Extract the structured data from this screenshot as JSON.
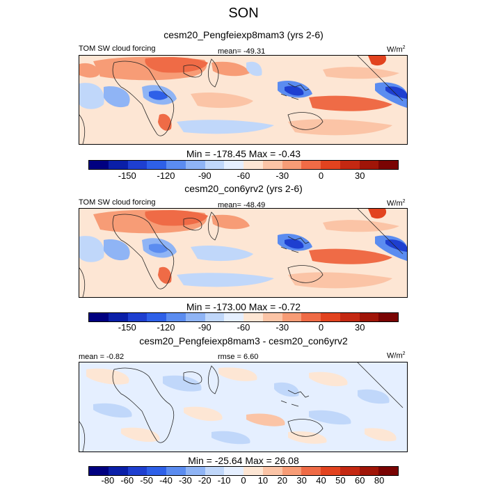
{
  "main_title": "SON",
  "units": "W/m",
  "units_sup": "2",
  "panels": [
    {
      "title": "cesm20_Pengfeiexp8mam3 (yrs 2-6)",
      "variable": "TOM SW cloud forcing",
      "stat": "mean= -49.31",
      "minmax": "Min = -178.45 Max =  -0.43"
    },
    {
      "title": "cesm20_con6yrv2 (yrs 2-6)",
      "variable": "TOM SW cloud forcing",
      "stat": "mean= -48.49",
      "minmax": "Min = -173.00 Max =  -0.72"
    },
    {
      "title": "cesm20_Pengfeiexp8mam3 - cesm20_con6yrv2",
      "stat_left": "mean =  -0.82",
      "stat_center": "rmse =   6.60",
      "minmax": "Min = -25.64 Max = 26.08"
    }
  ],
  "colorbar_abs": {
    "colors": [
      "#000080",
      "#0a1fa8",
      "#1e3fd0",
      "#2e60e8",
      "#5b8cf0",
      "#8fb4f5",
      "#c0d7fa",
      "#e5efff",
      "#fde6d4",
      "#fbc4a6",
      "#f79c76",
      "#ef6b46",
      "#e2431f",
      "#c42812",
      "#a01508",
      "#7a0403"
    ],
    "tick_labels": [
      "-150",
      "-120",
      "-90",
      "-60",
      "-30",
      "0",
      "30"
    ]
  },
  "colorbar_diff": {
    "colors": [
      "#000080",
      "#0a1fa8",
      "#1e3fd0",
      "#2e60e8",
      "#5b8cf0",
      "#8fb4f5",
      "#c0d7fa",
      "#e5efff",
      "#fde6d4",
      "#fbc4a6",
      "#f79c76",
      "#ef6b46",
      "#e2431f",
      "#c42812",
      "#a01508",
      "#7a0403"
    ],
    "tick_labels": [
      "-80",
      "-60",
      "-50",
      "-40",
      "-30",
      "-20",
      "-10",
      "0",
      "10",
      "20",
      "30",
      "40",
      "50",
      "60",
      "80"
    ]
  }
}
